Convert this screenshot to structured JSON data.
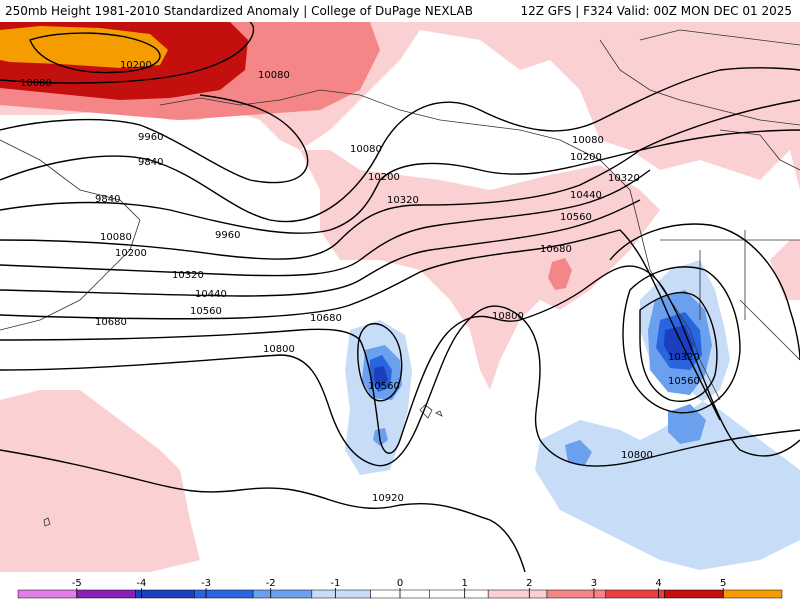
{
  "header": {
    "left": "250mb Height 1981-2010 Standardized Anomaly | College of DuPage NEXLAB",
    "right": "12Z GFS | F324 Valid: 00Z MON DEC 01 2025"
  },
  "contour_labels": {
    "c10080_a": "10080",
    "c10200_a": "10200",
    "c10080_b": "10080",
    "c9960_a": "9960",
    "c9840_a": "9840",
    "c9840_b": "9840",
    "c10080_c": "10080",
    "c10200_b": "10200",
    "c9960_b": "9960",
    "c10320_a": "10320",
    "c10440_a": "10440",
    "c10560_a": "10560",
    "c10680_a": "10680",
    "c10800_a": "10800",
    "c10080_d": "10080",
    "c10200_c": "10200",
    "c10320_b": "10320",
    "c10680_b": "10680",
    "c10560_b": "10560",
    "c10800_b": "10800",
    "c10680_c": "10680",
    "c10560_c": "10560",
    "c10080_e": "10080",
    "c10200_d": "10200",
    "c10320_c": "10320",
    "c10440_b": "10440",
    "c10560_d": "10560",
    "c10680_d": "10680",
    "c10320_d": "10320",
    "c10560_e": "10560",
    "c10800_c": "10800",
    "c10920_a": "10920"
  },
  "colorbar": {
    "ticks": [
      "-5",
      "-4",
      "-3",
      "-2",
      "-1",
      "0",
      "1",
      "2",
      "3",
      "4",
      "5"
    ],
    "colors": [
      "#e27ce6",
      "#8a1fb8",
      "#1b3fbf",
      "#2a65e0",
      "#6aa0ee",
      "#c6dcf7",
      "#ffffff",
      "#ffffff",
      "#fbd0d2",
      "#f58688",
      "#e84040",
      "#c40f0f",
      "#f59d00"
    ]
  },
  "colors": {
    "pos1": "#fbd0d2",
    "pos2": "#f58688",
    "pos3": "#e0141c",
    "pos4": "#c40f0f",
    "pos5": "#f59d00",
    "neg1": "#c6dcf7",
    "neg2": "#6aa0ee",
    "neg3": "#2a65e0",
    "neg4": "#1b3fbf"
  }
}
